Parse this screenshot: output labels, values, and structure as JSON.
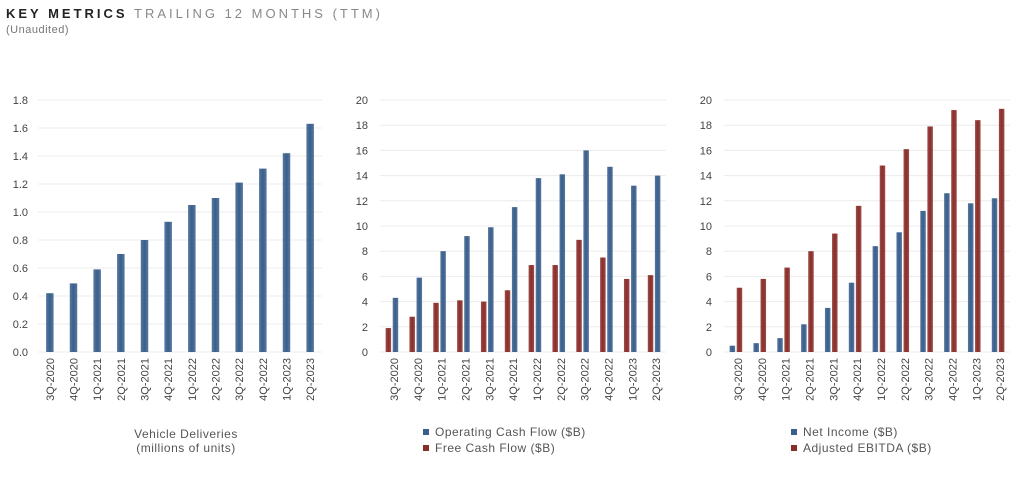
{
  "header": {
    "title_strong": "KEY METRICS",
    "title_light": "TRAILING 12 MONTHS (TTM)",
    "subtitle": "(Unaudited)"
  },
  "colors": {
    "blue": "#3a5f8c",
    "red": "#8a2e2a"
  },
  "chart_data": [
    {
      "type": "bar",
      "categories": [
        "3Q-2020",
        "4Q-2020",
        "1Q-2021",
        "2Q-2021",
        "3Q-2021",
        "4Q-2021",
        "1Q-2022",
        "2Q-2022",
        "3Q-2022",
        "4Q-2022",
        "1Q-2023",
        "2Q-2023"
      ],
      "series": [
        {
          "name": "Vehicle Deliveries",
          "color": "#3a5f8c",
          "values": [
            0.42,
            0.49,
            0.59,
            0.7,
            0.8,
            0.93,
            1.05,
            1.1,
            1.21,
            1.31,
            1.42,
            1.63
          ]
        }
      ],
      "ylim": [
        0,
        1.8
      ],
      "yticks": [
        "0.0",
        "0.2",
        "0.4",
        "0.6",
        "0.8",
        "1.0",
        "1.2",
        "1.4",
        "1.6",
        "1.8"
      ],
      "ytick_values": [
        0,
        0.2,
        0.4,
        0.6,
        0.8,
        1.0,
        1.2,
        1.4,
        1.6,
        1.8
      ],
      "caption": [
        "Vehicle Deliveries",
        "(millions of units)"
      ]
    },
    {
      "type": "bar",
      "categories": [
        "3Q-2020",
        "4Q-2020",
        "1Q-2021",
        "2Q-2021",
        "3Q-2021",
        "4Q-2021",
        "1Q-2022",
        "2Q-2022",
        "3Q-2022",
        "4Q-2022",
        "1Q-2023",
        "2Q-2023"
      ],
      "series": [
        {
          "name": "Free Cash Flow ($B)",
          "color": "#8a2e2a",
          "values": [
            1.9,
            2.8,
            3.9,
            4.1,
            4.0,
            4.9,
            6.9,
            6.9,
            8.9,
            7.5,
            5.8,
            6.1
          ]
        },
        {
          "name": "Operating Cash Flow ($B)",
          "color": "#3a5f8c",
          "values": [
            4.3,
            5.9,
            8.0,
            9.2,
            9.9,
            11.5,
            13.8,
            14.1,
            16.0,
            14.7,
            13.2,
            14.0
          ]
        }
      ],
      "ylim": [
        0,
        20
      ],
      "yticks": [
        "0",
        "2",
        "4",
        "6",
        "8",
        "10",
        "12",
        "14",
        "16",
        "18",
        "20"
      ],
      "ytick_values": [
        0,
        2,
        4,
        6,
        8,
        10,
        12,
        14,
        16,
        18,
        20
      ],
      "legend": [
        {
          "name": "Operating Cash Flow ($B)",
          "color": "#3a5f8c"
        },
        {
          "name": "Free Cash Flow ($B)",
          "color": "#8a2e2a"
        }
      ]
    },
    {
      "type": "bar",
      "categories": [
        "3Q-2020",
        "4Q-2020",
        "1Q-2021",
        "2Q-2021",
        "3Q-2021",
        "4Q-2021",
        "1Q-2022",
        "2Q-2022",
        "3Q-2022",
        "4Q-2022",
        "1Q-2023",
        "2Q-2023"
      ],
      "series": [
        {
          "name": "Net Income ($B)",
          "color": "#3a5f8c",
          "values": [
            0.5,
            0.7,
            1.1,
            2.2,
            3.5,
            5.5,
            8.4,
            9.5,
            11.2,
            12.6,
            11.8,
            12.2
          ]
        },
        {
          "name": "Adjusted EBITDA ($B)",
          "color": "#8a2e2a",
          "values": [
            5.1,
            5.8,
            6.7,
            8.0,
            9.4,
            11.6,
            14.8,
            16.1,
            17.9,
            19.2,
            18.4,
            19.3
          ]
        }
      ],
      "ylim": [
        0,
        20
      ],
      "yticks": [
        "0",
        "2",
        "4",
        "6",
        "8",
        "10",
        "12",
        "14",
        "16",
        "18",
        "20"
      ],
      "ytick_values": [
        0,
        2,
        4,
        6,
        8,
        10,
        12,
        14,
        16,
        18,
        20
      ],
      "legend": [
        {
          "name": "Net Income ($B)",
          "color": "#3a5f8c"
        },
        {
          "name": "Adjusted EBITDA ($B)",
          "color": "#8a2e2a"
        }
      ]
    }
  ]
}
